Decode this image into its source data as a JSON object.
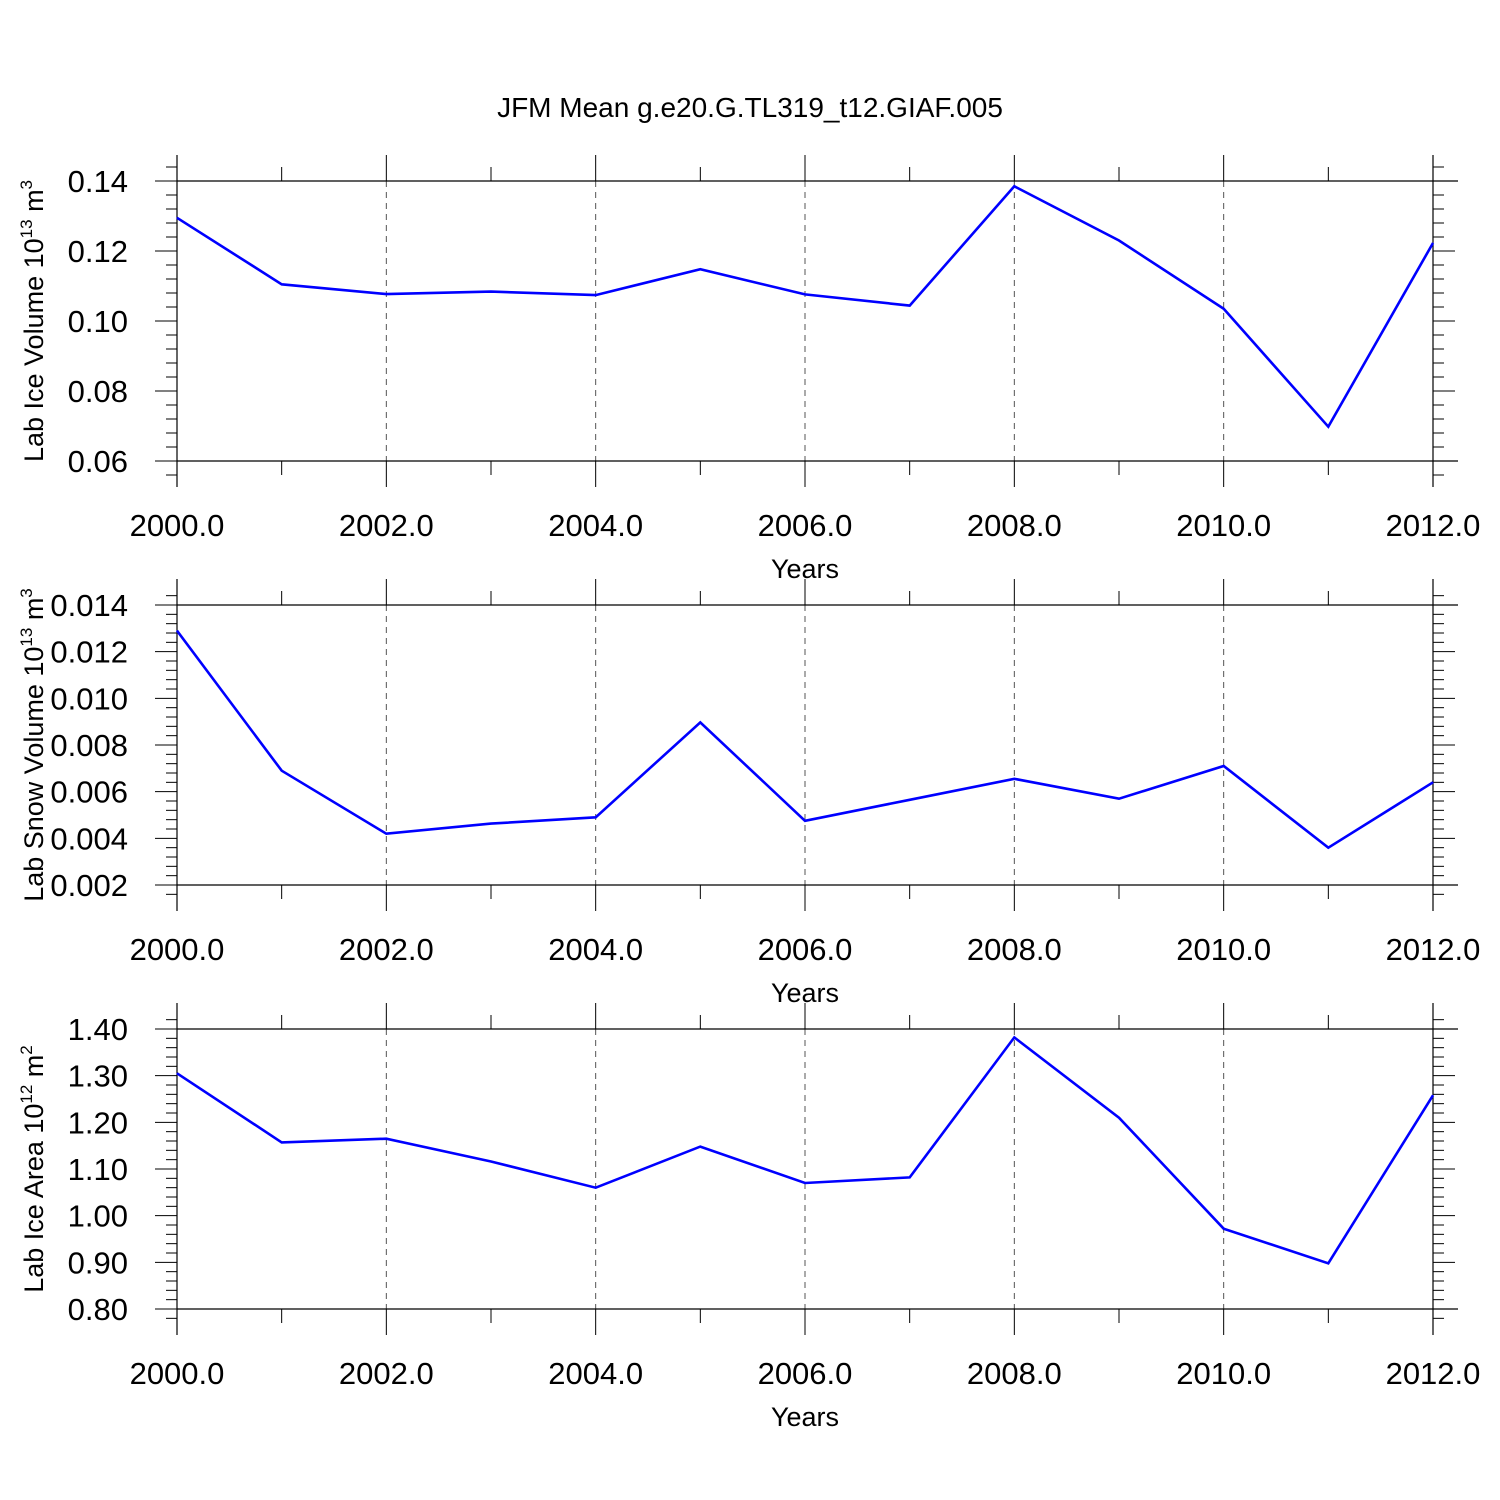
{
  "figure": {
    "title": "JFM Mean g.e20.G.TL319_t12.GIAF.005"
  },
  "colors": {
    "series": "#0000ff",
    "axes": "#000000",
    "grid": "#555555"
  },
  "chart_data": [
    {
      "type": "line",
      "title": "",
      "xlabel": "Years",
      "ylabel": {
        "prefix": "Lab Ice Volume 10",
        "exp": "13",
        "unit": " m",
        "unit_exp": "3"
      },
      "xlim": [
        2000,
        2012
      ],
      "ylim": [
        0.06,
        0.14
      ],
      "xticks": [
        2000,
        2002,
        2004,
        2006,
        2008,
        2010,
        2012
      ],
      "xtick_labels": [
        "2000.0",
        "2002.0",
        "2004.0",
        "2006.0",
        "2008.0",
        "2010.0",
        "2012.0"
      ],
      "yticks": [
        0.06,
        0.08,
        0.1,
        0.12,
        0.14
      ],
      "ytick_labels": [
        "0.06",
        "0.08",
        "0.10",
        "0.12",
        "0.14"
      ],
      "grid": "vertical dashed at major x ticks",
      "series": [
        {
          "x": [
            2000,
            2001,
            2002,
            2003,
            2004,
            2005,
            2006,
            2007,
            2008,
            2009,
            2010,
            2011,
            2012
          ],
          "values": [
            0.1295,
            0.1105,
            0.1077,
            0.1084,
            0.1074,
            0.1148,
            0.1076,
            0.1044,
            0.1385,
            0.123,
            0.1035,
            0.0698,
            0.1223
          ]
        }
      ]
    },
    {
      "type": "line",
      "title": "",
      "xlabel": "Years",
      "ylabel": {
        "prefix": "Lab Snow Volume 10",
        "exp": "13",
        "unit": " m",
        "unit_exp": "3"
      },
      "xlim": [
        2000,
        2012
      ],
      "ylim": [
        0.002,
        0.014
      ],
      "xticks": [
        2000,
        2002,
        2004,
        2006,
        2008,
        2010,
        2012
      ],
      "xtick_labels": [
        "2000.0",
        "2002.0",
        "2004.0",
        "2006.0",
        "2008.0",
        "2010.0",
        "2012.0"
      ],
      "yticks": [
        0.002,
        0.004,
        0.006,
        0.008,
        0.01,
        0.012,
        0.014
      ],
      "ytick_labels": [
        "0.002",
        "0.004",
        "0.006",
        "0.008",
        "0.010",
        "0.012",
        "0.014"
      ],
      "grid": "vertical dashed at major x ticks",
      "series": [
        {
          "x": [
            2000,
            2001,
            2002,
            2003,
            2004,
            2005,
            2006,
            2007,
            2008,
            2009,
            2010,
            2011,
            2012
          ],
          "values": [
            0.0129,
            0.0069,
            0.0042,
            0.00463,
            0.0049,
            0.00897,
            0.00475,
            0.00565,
            0.00655,
            0.0057,
            0.0071,
            0.0036,
            0.0064
          ]
        }
      ]
    },
    {
      "type": "line",
      "title": "",
      "xlabel": "Years",
      "ylabel": {
        "prefix": "Lab Ice Area 10",
        "exp": "12",
        "unit": " m",
        "unit_exp": "2"
      },
      "xlim": [
        2000,
        2012
      ],
      "ylim": [
        0.8,
        1.4
      ],
      "xticks": [
        2000,
        2002,
        2004,
        2006,
        2008,
        2010,
        2012
      ],
      "xtick_labels": [
        "2000.0",
        "2002.0",
        "2004.0",
        "2006.0",
        "2008.0",
        "2010.0",
        "2012.0"
      ],
      "yticks": [
        0.8,
        0.9,
        1.0,
        1.1,
        1.2,
        1.3,
        1.4
      ],
      "ytick_labels": [
        "0.80",
        "0.90",
        "1.00",
        "1.10",
        "1.20",
        "1.30",
        "1.40"
      ],
      "grid": "vertical dashed at major x ticks",
      "series": [
        {
          "x": [
            2000,
            2001,
            2002,
            2003,
            2004,
            2005,
            2006,
            2007,
            2008,
            2009,
            2010,
            2011,
            2012
          ],
          "values": [
            1.305,
            1.157,
            1.165,
            1.116,
            1.06,
            1.148,
            1.07,
            1.082,
            1.382,
            1.21,
            0.972,
            0.898,
            1.258
          ]
        }
      ]
    }
  ]
}
